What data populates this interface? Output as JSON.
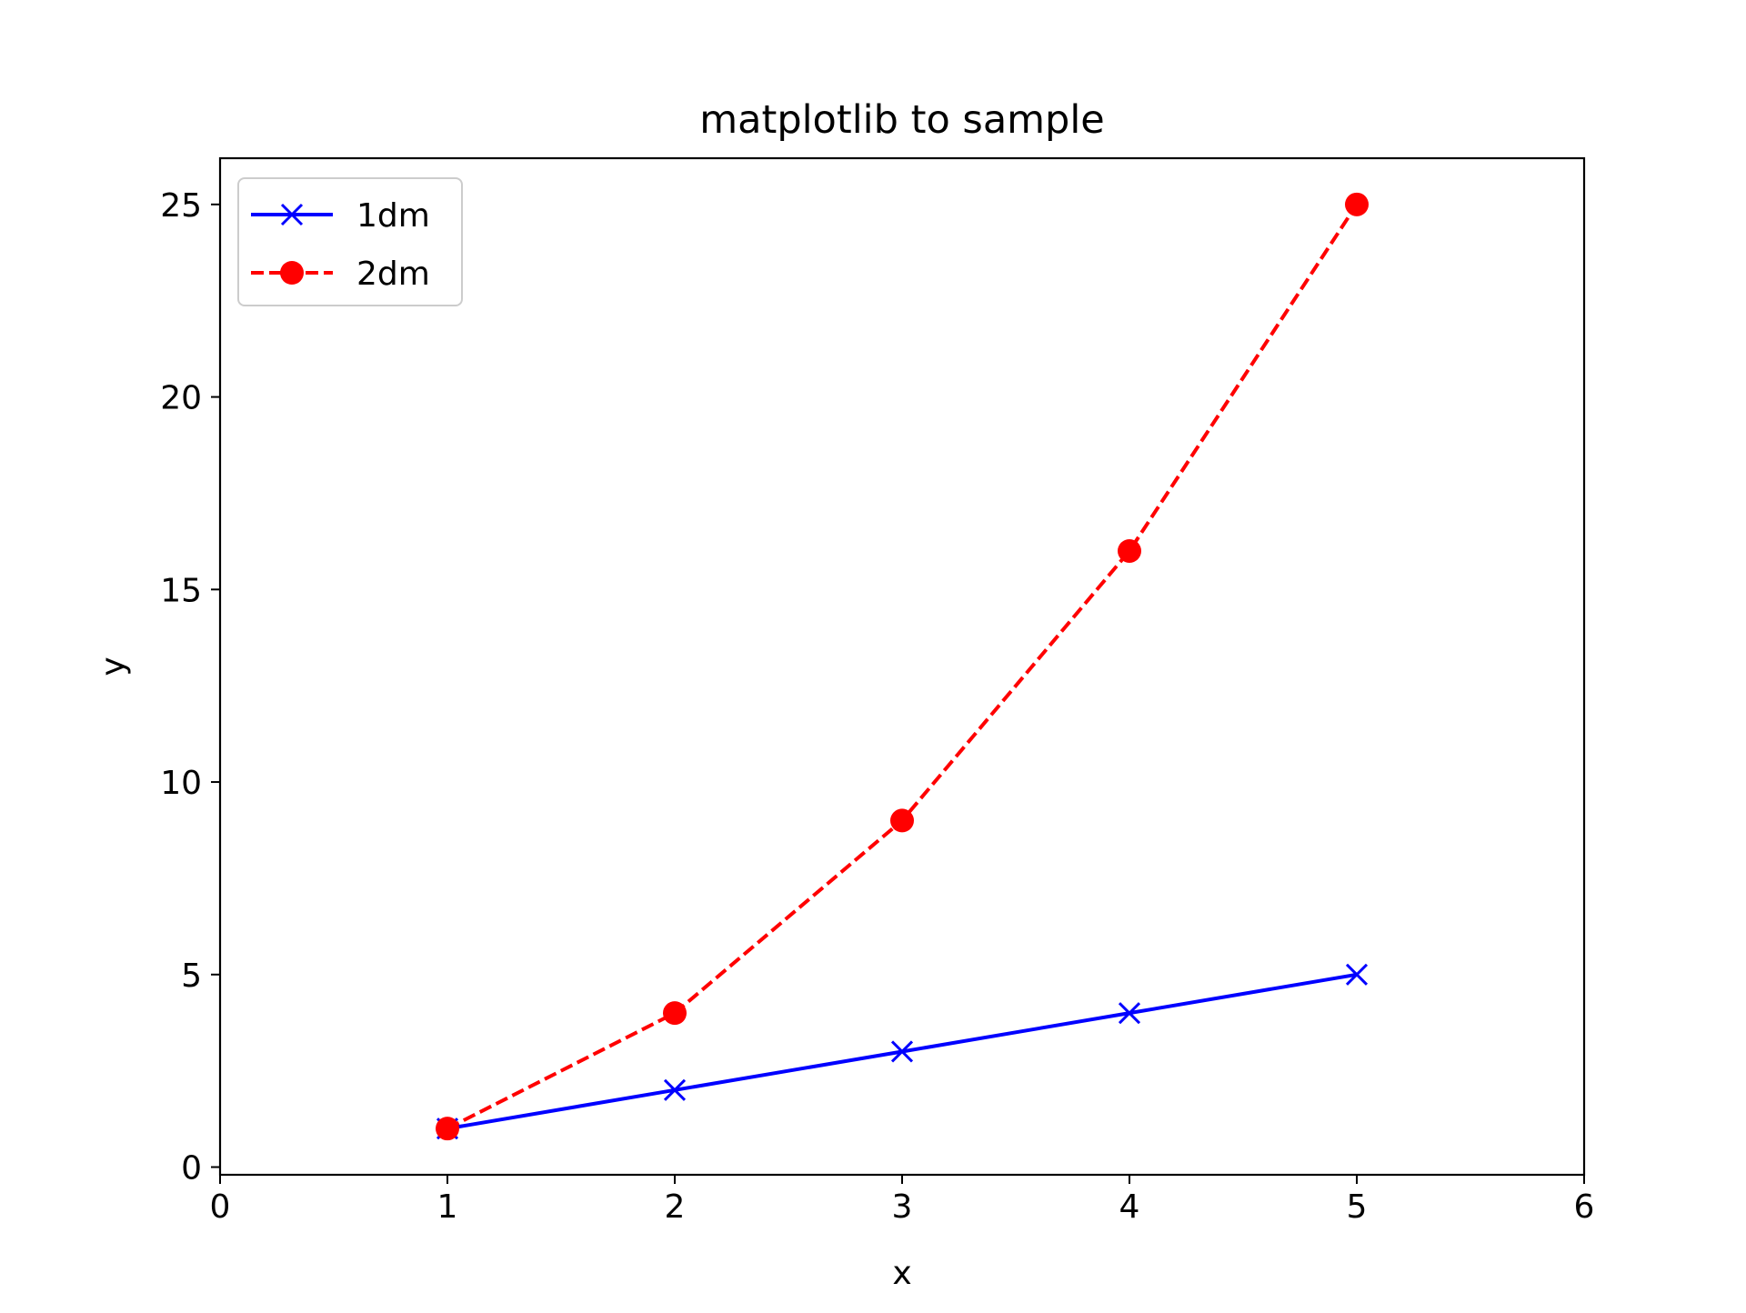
{
  "chart_data": {
    "type": "line",
    "title": "matplotlib to sample",
    "xlabel": "x",
    "ylabel": "y",
    "xlim": [
      0,
      6
    ],
    "ylim": [
      -0.2,
      26.2
    ],
    "xticks": [
      0,
      1,
      2,
      3,
      4,
      5,
      6
    ],
    "yticks": [
      0,
      5,
      10,
      15,
      20,
      25
    ],
    "grid": false,
    "legend": {
      "position": "top-left"
    },
    "series": [
      {
        "name": "1dm",
        "x": [
          1,
          2,
          3,
          4,
          5
        ],
        "y": [
          1,
          2,
          3,
          4,
          5
        ],
        "color": "#0000ff",
        "line_style": "solid",
        "marker": "x"
      },
      {
        "name": "2dm",
        "x": [
          1,
          2,
          3,
          4,
          5
        ],
        "y": [
          1,
          4,
          9,
          16,
          25
        ],
        "color": "#ff0000",
        "line_style": "dashed",
        "marker": "o"
      }
    ]
  }
}
